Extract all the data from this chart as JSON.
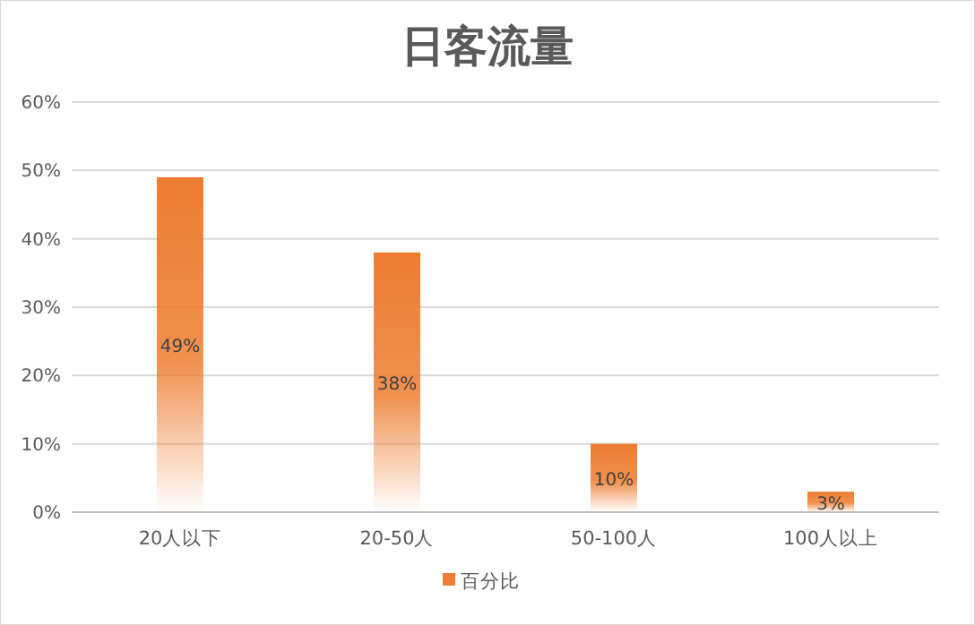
{
  "chart_data": {
    "type": "bar",
    "title": "日客流量",
    "categories": [
      "20人以下",
      "20-50人",
      "50-100人",
      "100人以上"
    ],
    "series": [
      {
        "name": "百分比",
        "color": "#ed7d31",
        "values": [
          49,
          38,
          10,
          3
        ],
        "value_labels": [
          "49%",
          "38%",
          "10%",
          "3%"
        ]
      }
    ],
    "ylim": [
      0,
      60
    ],
    "yticks": [
      {
        "value": 0,
        "label": "0%"
      },
      {
        "value": 10,
        "label": "10%"
      },
      {
        "value": 20,
        "label": "20%"
      },
      {
        "value": 30,
        "label": "30%"
      },
      {
        "value": 40,
        "label": "40%"
      },
      {
        "value": 50,
        "label": "50%"
      },
      {
        "value": 60,
        "label": "60%"
      }
    ],
    "grid": "y",
    "legend": "bottom"
  }
}
